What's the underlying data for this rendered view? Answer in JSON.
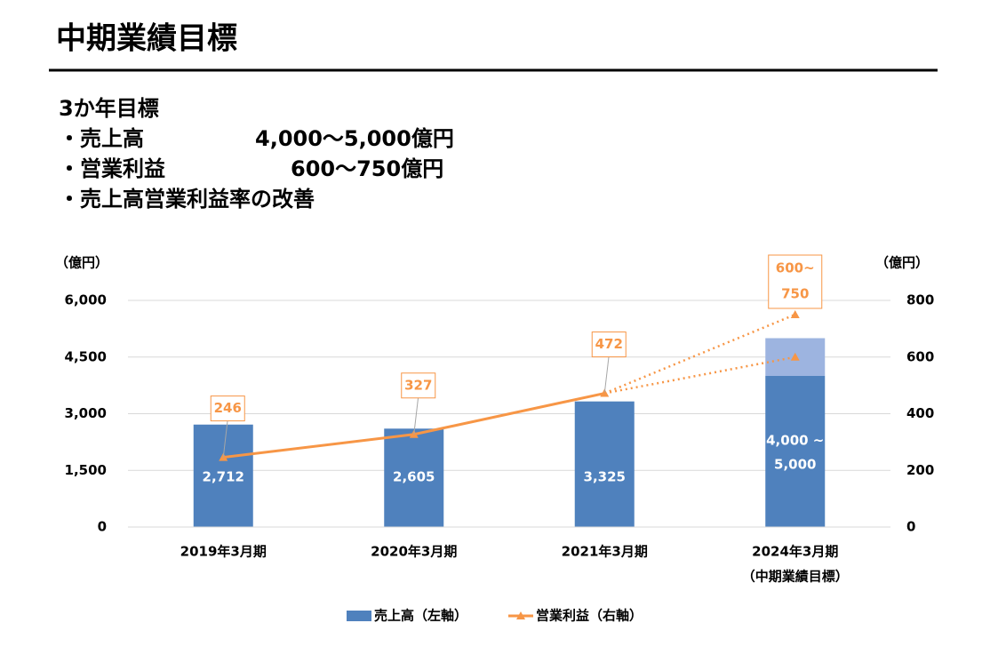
{
  "header": {
    "title": "中期業績目標",
    "subtitle": "3か年目標",
    "bullets": [
      {
        "label": "・売上高",
        "value": "4,000～5,000億円"
      },
      {
        "label": "・営業利益",
        "value": "600～750億円"
      },
      {
        "label": "・売上高営業利益率の改善"
      }
    ]
  },
  "chart_data": {
    "type": "combo",
    "categories": [
      [
        "2019年3月期"
      ],
      [
        "2020年3月期"
      ],
      [
        "2021年3月期"
      ],
      [
        "2024年3月期",
        "（中期業績目標）"
      ]
    ],
    "y_unit_label": "（億円）",
    "y2_unit_label": "（億円）",
    "ylim": [
      0,
      6000
    ],
    "yticks": [
      0,
      {
        "value": 1500,
        "label": "1,500"
      },
      {
        "value": 3000,
        "label": "3,000"
      },
      {
        "value": 4500,
        "label": "4,500"
      },
      {
        "value": 6000,
        "label": "6,000"
      }
    ],
    "y2lim": [
      0,
      800
    ],
    "y2ticks": [
      0,
      200,
      400,
      600,
      800
    ],
    "grid": true,
    "series": [
      {
        "name": "売上高（左軸）",
        "color": "#4f81bd",
        "values": [
          2712,
          2605,
          3325,
          4000
        ],
        "value_labels": [
          "2,712",
          "2,605",
          "3,325",
          "4,000 ~"
        ],
        "range_high": [
          null,
          null,
          null,
          5000
        ],
        "range_high_labels": [
          null,
          null,
          null,
          "5,000"
        ],
        "range_color": "#9db4e0"
      },
      {
        "name": "営業利益（右軸）",
        "color": "#f79646",
        "axis": "y2",
        "values": [
          246,
          327,
          472,
          600
        ],
        "value_labels": [
          "246",
          "327",
          "472",
          "600~"
        ],
        "range_high": [
          null,
          null,
          null,
          750
        ],
        "range_high_labels": [
          null,
          null,
          null,
          "750"
        ]
      }
    ],
    "legend": "bottom"
  }
}
